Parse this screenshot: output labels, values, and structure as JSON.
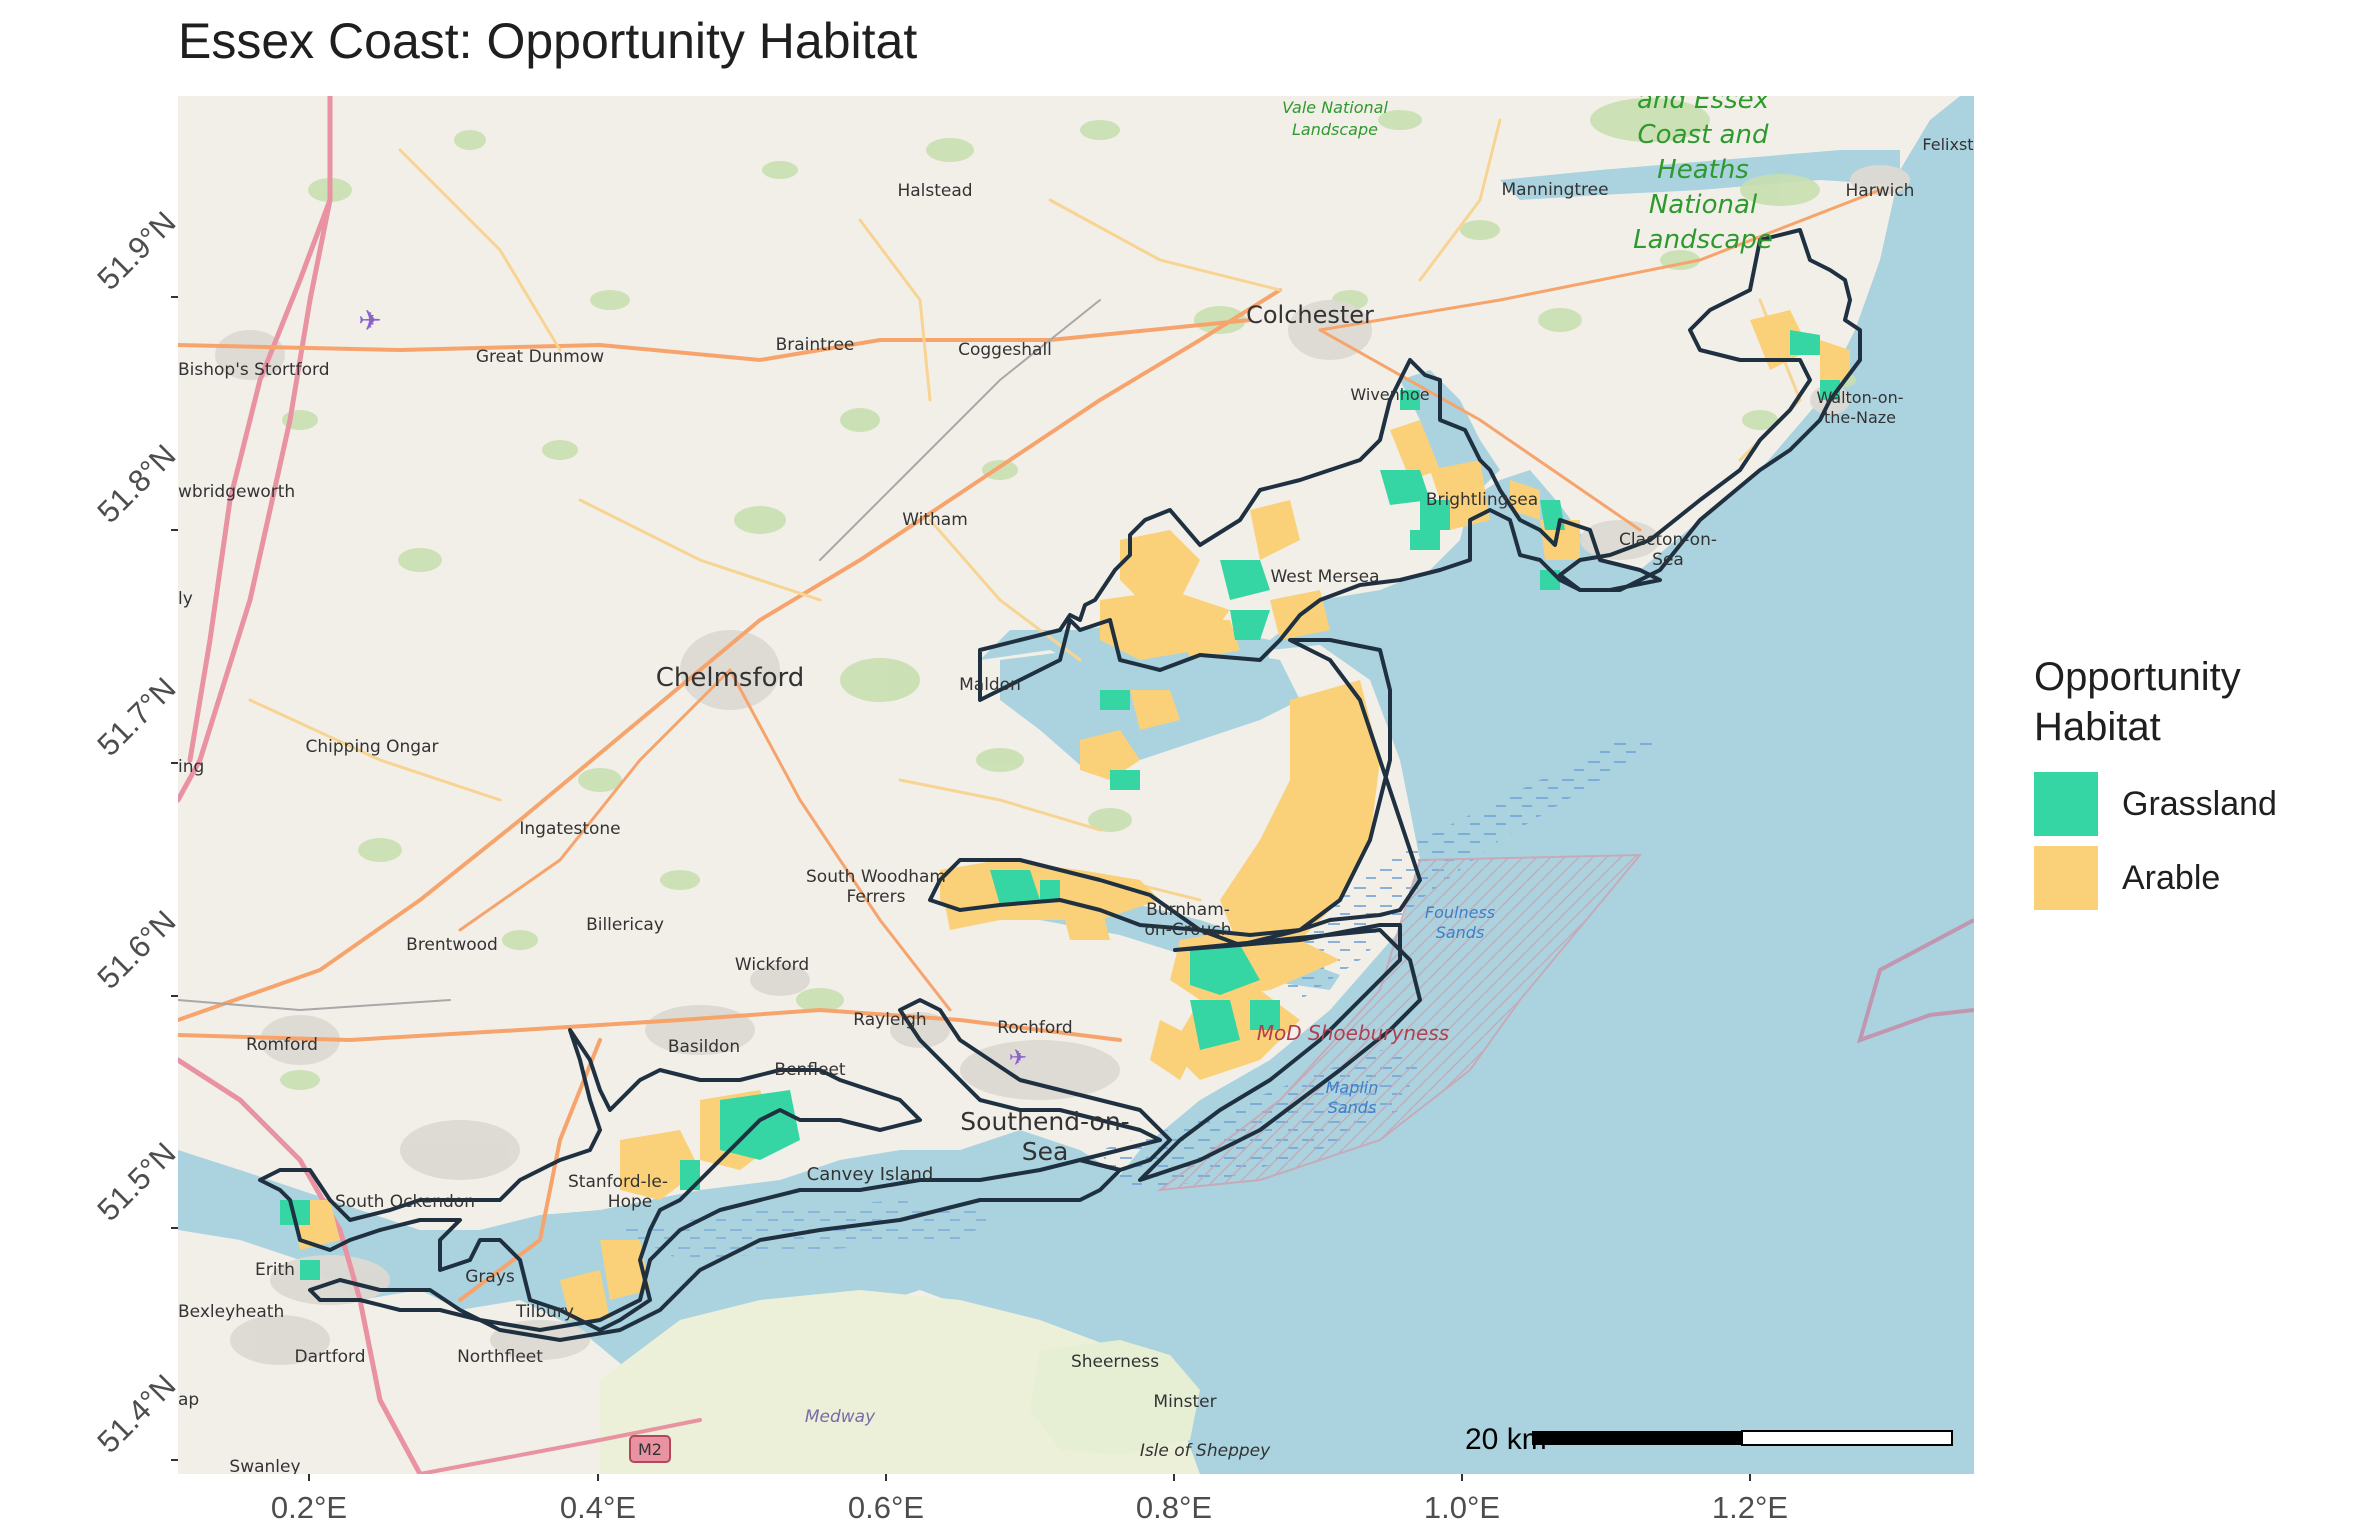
{
  "title": "Essex Coast: Opportunity Habitat",
  "legend": {
    "title_line1": "Opportunity",
    "title_line2": "Habitat",
    "items": [
      {
        "label": "Grassland",
        "color": "#36D6A4"
      },
      {
        "label": "Arable",
        "color": "#FAD179"
      }
    ]
  },
  "axes": {
    "x_ticks": [
      "0.2°E",
      "0.4°E",
      "0.6°E",
      "0.8°E",
      "1.0°E",
      "1.2°E"
    ],
    "y_ticks": [
      "51.9°N",
      "51.8°N",
      "51.7°N",
      "51.6°N",
      "51.5°N",
      "51.4°N"
    ]
  },
  "scale_bar": {
    "label": "20 km"
  },
  "colors": {
    "sea": "#AAD3DF",
    "land": "#F2EFE9",
    "outline": "#1F3140"
  },
  "places": {
    "colchester": "Colchester",
    "chelmsford": "Chelmsford",
    "maldon": "Maldon",
    "witham": "Witham",
    "braintree": "Braintree",
    "coggeshall": "Coggeshall",
    "halstead": "Halstead",
    "great_dunmow": "Great Dunmow",
    "bishops_stortford": "Bishop's Stortford",
    "sawbridgeworth": "wbridgeworth",
    "chipping_ongar": "Chipping Ongar",
    "ingatestone": "Ingatestone",
    "billericay": "Billericay",
    "brentwood": "Brentwood",
    "wickford": "Wickford",
    "romford": "Romford",
    "basildon": "Basildon",
    "rayleigh": "Rayleigh",
    "rochford": "Rochford",
    "benfleet": "Benfleet",
    "southend_1": "Southend-on-",
    "southend_2": "Sea",
    "canvey": "Canvey Island",
    "stanford_1": "Stanford-le-",
    "stanford_2": "Hope",
    "south_ockendon": "South Ockendon",
    "grays": "Grays",
    "tilbury": "Tilbury",
    "erith": "Erith",
    "bexleyheath": "Bexleyheath",
    "dartford": "Dartford",
    "northfleet": "Northfleet",
    "swanley": "Swanley",
    "sheerness": "Sheerness",
    "minster": "Minster",
    "isle_of_sheppey": "Isle of Sheppey",
    "medway": "Medway",
    "m2": "M2",
    "south_woodham_1": "South Woodham",
    "south_woodham_2": "Ferrers",
    "burnham_1": "Burnham-",
    "burnham_2": "on-Crouch",
    "west_mersea": "West Mersea",
    "brightlingsea": "Brightlingsea",
    "wivenhoe": "Wivenhoe",
    "clacton_1": "Clacton-on-",
    "clacton_2": "Sea",
    "walton_1": "Walton-on-",
    "walton_2": "the-Naze",
    "manningtree": "Manningtree",
    "harwich": "Harwich",
    "felixstowe": "Felixst",
    "mod_shoeburyness": "MoD Shoeburyness",
    "foulness_1": "Foulness",
    "foulness_2": "Sands",
    "maplin_1": "Maplin",
    "maplin_2": "Sands",
    "dedham_vale_1": "Vale National",
    "dedham_vale_2": "Landscape",
    "suffolk_1": "and Essex",
    "suffolk_2": "Coast and",
    "suffolk_3": "Heaths",
    "suffolk_4": "National",
    "suffolk_5": "Landscape",
    "ing": "ing",
    "ly": "ly",
    "ap": "ap"
  }
}
